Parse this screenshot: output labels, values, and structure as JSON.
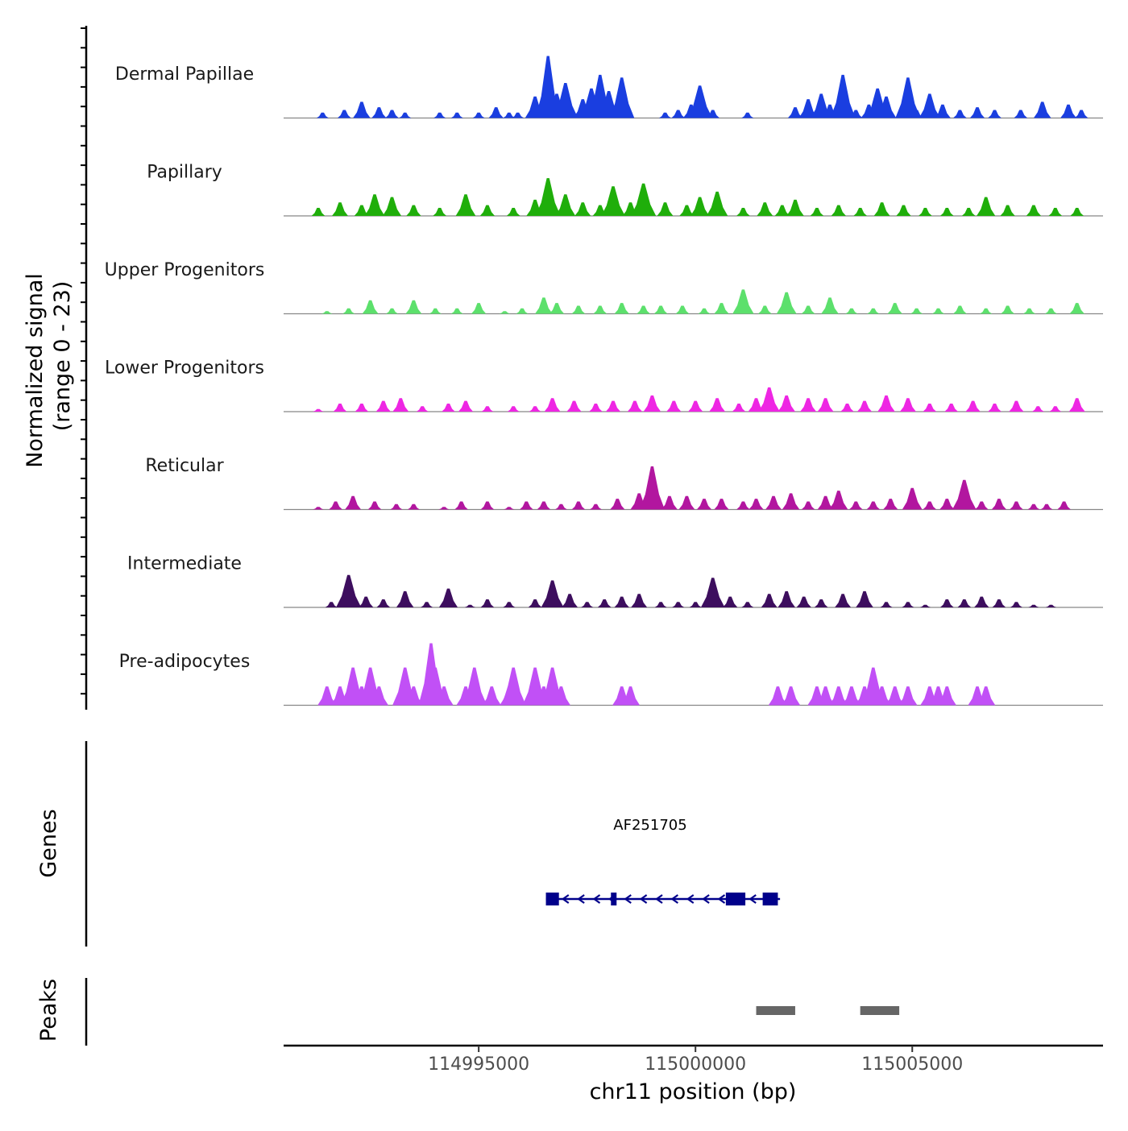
{
  "chart_data": {
    "type": "area",
    "title": "",
    "chromosome": "chr11",
    "xlabel": "chr11 position (bp)",
    "xlim": [
      114990500,
      115009400
    ],
    "xticks": [
      114995000,
      115000000,
      115005000
    ],
    "xtick_labels": [
      "114995000",
      "115000000",
      "115005000"
    ],
    "signal_ylabel": "Normalized signal",
    "signal_range_label": "(range 0 - 23)",
    "ylim": [
      0,
      23
    ],
    "tracks": [
      {
        "name": "Dermal Papillae",
        "color": "#1a3ee0",
        "x": [
          114991400,
          114991900,
          114992300,
          114992700,
          114993000,
          114993300,
          114994100,
          114994500,
          114995000,
          114995400,
          114995700,
          114995900,
          114996300,
          114996600,
          114996800,
          114997000,
          114997400,
          114997600,
          114997800,
          114998000,
          114998300,
          114999300,
          114999600,
          114999900,
          115000100,
          115000400,
          115001200,
          115002300,
          115002600,
          115002900,
          115003100,
          115003400,
          115003700,
          115004000,
          115004200,
          115004400,
          115004900,
          115005100,
          115005400,
          115005700,
          115006100,
          115006500,
          115006900,
          115007500,
          115008000,
          115008600,
          115008900
        ],
        "values": [
          2,
          3,
          6,
          4,
          3,
          2,
          2,
          2,
          2,
          4,
          2,
          2,
          8,
          23,
          9,
          13,
          7,
          11,
          16,
          10,
          15,
          2,
          3,
          5,
          12,
          3,
          2,
          4,
          7,
          9,
          5,
          16,
          3,
          5,
          11,
          8,
          15,
          3,
          9,
          5,
          3,
          4,
          3,
          3,
          6,
          5,
          3
        ]
      },
      {
        "name": "Papillary",
        "color": "#1fae0a",
        "x": [
          114991300,
          114991800,
          114992300,
          114992600,
          114993000,
          114993500,
          114994100,
          114994700,
          114995200,
          114995800,
          114996300,
          114996600,
          114997000,
          114997400,
          114997800,
          114998100,
          114998500,
          114998800,
          114999300,
          114999800,
          115000100,
          115000500,
          115001100,
          115001600,
          115002000,
          115002300,
          115002800,
          115003300,
          115003800,
          115004300,
          115004800,
          115005300,
          115005800,
          115006300,
          115006700,
          115007200,
          115007800,
          115008300,
          115008800
        ],
        "values": [
          3,
          5,
          4,
          8,
          7,
          4,
          3,
          8,
          4,
          3,
          6,
          14,
          8,
          5,
          4,
          11,
          5,
          12,
          5,
          4,
          7,
          9,
          3,
          5,
          4,
          6,
          3,
          4,
          3,
          5,
          4,
          3,
          3,
          3,
          7,
          4,
          4,
          3,
          3
        ]
      },
      {
        "name": "Upper Progenitors",
        "color": "#5ce06c",
        "x": [
          114991500,
          114992000,
          114992500,
          114993000,
          114993500,
          114994000,
          114994500,
          114995000,
          114995600,
          114996000,
          114996500,
          114996800,
          114997300,
          114997800,
          114998300,
          114998800,
          114999200,
          114999700,
          115000200,
          115000600,
          115001100,
          115001600,
          115002100,
          115002600,
          115003100,
          115003600,
          115004100,
          115004600,
          115005100,
          115005600,
          115006100,
          115006700,
          115007200,
          115007700,
          115008200,
          115008800
        ],
        "values": [
          1,
          2,
          5,
          2,
          5,
          2,
          2,
          4,
          1,
          2,
          6,
          4,
          3,
          3,
          4,
          3,
          3,
          3,
          2,
          4,
          9,
          3,
          8,
          3,
          6,
          2,
          2,
          4,
          2,
          2,
          3,
          2,
          3,
          2,
          2,
          4
        ]
      },
      {
        "name": "Lower Progenitors",
        "color": "#ee26e3",
        "x": [
          114991300,
          114991800,
          114992300,
          114992800,
          114993200,
          114993700,
          114994300,
          114994700,
          114995200,
          114995800,
          114996300,
          114996700,
          114997200,
          114997700,
          114998100,
          114998600,
          114999000,
          114999500,
          115000000,
          115000500,
          115001000,
          115001400,
          115001700,
          115002100,
          115002600,
          115003000,
          115003500,
          115003900,
          115004400,
          115004900,
          115005400,
          115005900,
          115006400,
          115006900,
          115007400,
          115007900,
          115008300,
          115008800
        ],
        "values": [
          1,
          3,
          3,
          4,
          5,
          2,
          3,
          4,
          2,
          2,
          2,
          5,
          4,
          3,
          4,
          4,
          6,
          4,
          4,
          5,
          3,
          5,
          9,
          6,
          5,
          5,
          3,
          4,
          6,
          5,
          3,
          3,
          4,
          3,
          4,
          2,
          2,
          5
        ]
      },
      {
        "name": "Reticular",
        "color": "#b2169f",
        "x": [
          114991300,
          114991700,
          114992100,
          114992600,
          114993100,
          114993500,
          114994200,
          114994600,
          114995200,
          114995700,
          114996100,
          114996500,
          114996900,
          114997300,
          114997700,
          114998200,
          114998700,
          114999000,
          114999400,
          114999800,
          115000200,
          115000600,
          115001100,
          115001400,
          115001800,
          115002200,
          115002600,
          115003000,
          115003300,
          115003700,
          115004100,
          115004500,
          115005000,
          115005400,
          115005800,
          115006200,
          115006600,
          115007000,
          115007400,
          115007800,
          115008100,
          115008500
        ],
        "values": [
          1,
          3,
          5,
          3,
          2,
          2,
          1,
          3,
          3,
          1,
          3,
          3,
          2,
          3,
          2,
          4,
          6,
          16,
          5,
          5,
          4,
          4,
          3,
          4,
          5,
          6,
          3,
          5,
          7,
          3,
          3,
          4,
          8,
          3,
          4,
          11,
          3,
          4,
          3,
          2,
          2,
          3
        ]
      },
      {
        "name": "Intermediate",
        "color": "#3d0e5e",
        "x": [
          114991600,
          114992000,
          114992400,
          114992800,
          114993300,
          114993800,
          114994300,
          114994800,
          114995200,
          114995700,
          114996300,
          114996700,
          114997100,
          114997500,
          114997900,
          114998300,
          114998700,
          114999200,
          114999600,
          115000000,
          115000400,
          115000800,
          115001200,
          115001700,
          115002100,
          115002500,
          115002900,
          115003400,
          115003900,
          115004400,
          115004900,
          115005300,
          115005800,
          115006200,
          115006600,
          115007000,
          115007400,
          115007800,
          115008200
        ],
        "values": [
          2,
          12,
          4,
          3,
          6,
          2,
          7,
          1,
          3,
          2,
          3,
          10,
          5,
          2,
          3,
          4,
          5,
          2,
          2,
          2,
          11,
          4,
          2,
          5,
          6,
          4,
          3,
          5,
          6,
          2,
          2,
          1,
          3,
          3,
          4,
          3,
          2,
          1,
          1
        ]
      },
      {
        "name": "Pre-adipocytes",
        "color": "#c150f6",
        "x": [
          114991500,
          114991800,
          114992100,
          114992300,
          114992500,
          114992700,
          114993300,
          114993500,
          114993900,
          114994000,
          114994200,
          114994700,
          114994900,
          114995300,
          114995700,
          114995800,
          114996300,
          114996500,
          114996700,
          114996900,
          114998300,
          114998500,
          115001900,
          115002200,
          115002800,
          115003000,
          115003300,
          115003600,
          115003900,
          115004100,
          115004300,
          115004600,
          115004900,
          115005400,
          115005600,
          115005800,
          115006500,
          115006700
        ],
        "values": [
          7,
          7,
          14,
          7,
          14,
          7,
          14,
          7,
          23,
          14,
          7,
          7,
          14,
          7,
          7,
          14,
          14,
          7,
          14,
          7,
          7,
          7,
          7,
          7,
          7,
          7,
          7,
          7,
          7,
          14,
          7,
          7,
          7,
          7,
          7,
          7,
          7,
          7
        ]
      }
    ],
    "gene": {
      "name": "AF251705",
      "color": "#00008b",
      "strand": "-",
      "start": 114996550,
      "end": 115001950,
      "exons": [
        [
          114996550,
          114996850
        ],
        [
          114998050,
          114998180
        ],
        [
          115000700,
          115001150
        ],
        [
          115001550,
          115001900
        ]
      ]
    },
    "genes_label": "Genes",
    "peaks_label": "Peaks",
    "peaks_color": "#666666",
    "peaks": [
      [
        115001400,
        115002300
      ],
      [
        115003800,
        115004700
      ]
    ]
  }
}
